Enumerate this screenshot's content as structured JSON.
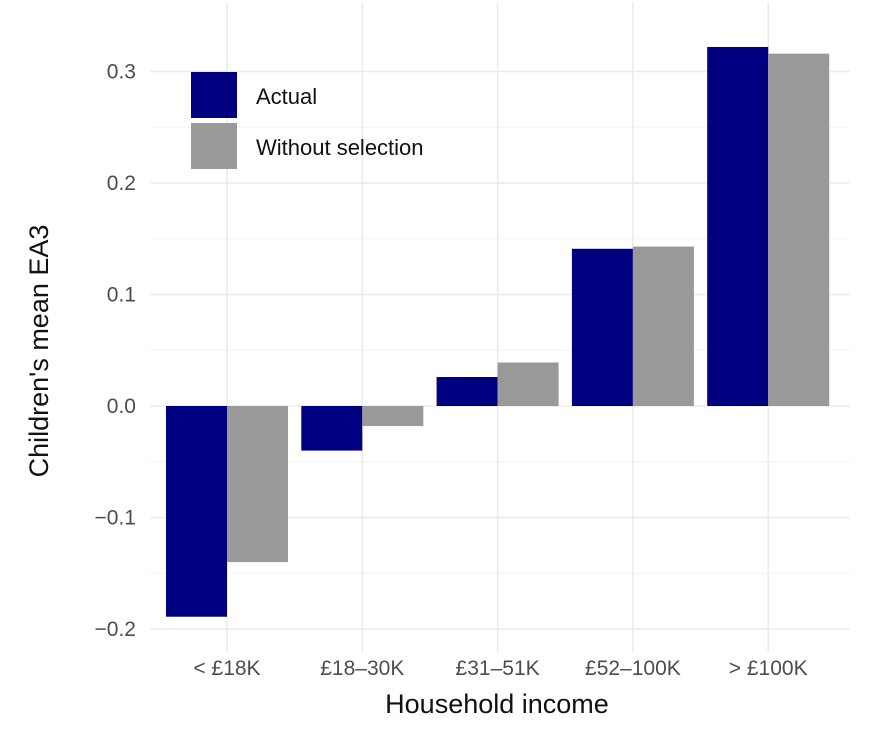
{
  "chart_data": {
    "type": "bar",
    "title": "",
    "xlabel": "Household income",
    "ylabel": "Children's mean EA3",
    "categories": [
      "< £18K",
      "£18–30K",
      "£31–51K",
      "£52–100K",
      "> £100K"
    ],
    "series": [
      {
        "name": "Actual",
        "color": "#000080",
        "values": [
          -0.189,
          -0.04,
          0.026,
          0.141,
          0.322
        ]
      },
      {
        "name": "Without selection",
        "color": "#999999",
        "values": [
          -0.14,
          -0.018,
          0.039,
          0.143,
          0.316
        ]
      }
    ],
    "ylim": [
      -0.21,
      0.335
    ],
    "yticks": [
      -0.2,
      -0.1,
      0.0,
      0.1,
      0.2,
      0.3
    ],
    "ytick_labels": [
      "−0.2",
      "−0.1",
      "0.0",
      "0.1",
      "0.2",
      "0.3"
    ],
    "grid": true,
    "legend": {
      "position": "top-left",
      "entries": [
        "Actual",
        "Without selection"
      ]
    }
  }
}
